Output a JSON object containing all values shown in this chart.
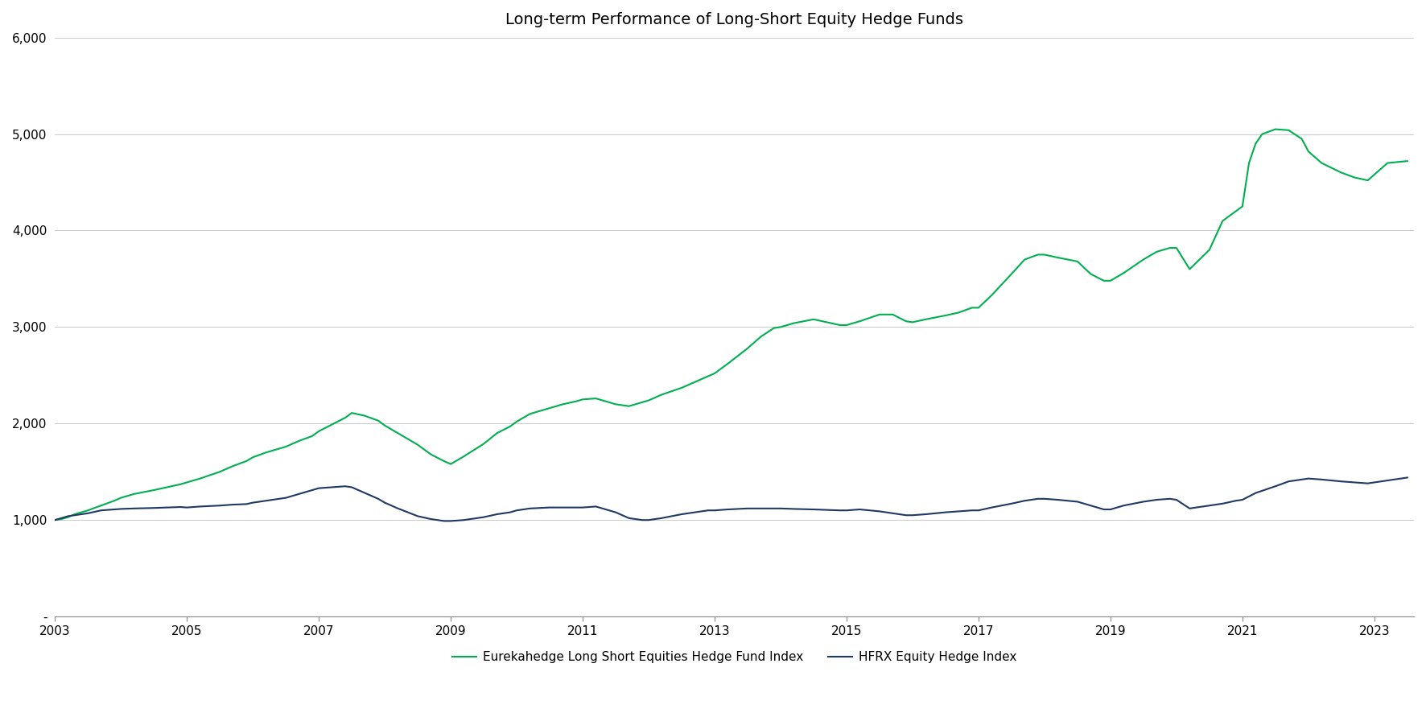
{
  "title": "Long-term Performance of Long-Short Equity Hedge Funds",
  "title_fontsize": 14,
  "background_color": "#ffffff",
  "green_label": "Eurekahedge Long Short Equities Hedge Fund Index",
  "navy_label": "HFRX Equity Hedge Index",
  "green_color": "#00b050",
  "navy_color": "#1f3864",
  "ylim": [
    0,
    6000
  ],
  "yticks": [
    0,
    1000,
    2000,
    3000,
    4000,
    5000,
    6000
  ],
  "ytick_labels": [
    "-",
    "1,000",
    "2,000",
    "3,000",
    "4,000",
    "5,000",
    "6,000"
  ],
  "xticks": [
    2003,
    2005,
    2007,
    2009,
    2011,
    2013,
    2015,
    2017,
    2019,
    2021,
    2023
  ],
  "green_x": [
    2003.0,
    2003.1,
    2003.2,
    2003.3,
    2003.5,
    2003.7,
    2003.9,
    2004.0,
    2004.2,
    2004.5,
    2004.7,
    2004.9,
    2005.0,
    2005.2,
    2005.5,
    2005.7,
    2005.9,
    2006.0,
    2006.2,
    2006.5,
    2006.7,
    2006.9,
    2007.0,
    2007.2,
    2007.4,
    2007.5,
    2007.7,
    2007.9,
    2008.0,
    2008.2,
    2008.5,
    2008.7,
    2008.9,
    2009.0,
    2009.2,
    2009.5,
    2009.7,
    2009.9,
    2010.0,
    2010.2,
    2010.5,
    2010.7,
    2010.9,
    2011.0,
    2011.2,
    2011.5,
    2011.7,
    2011.9,
    2012.0,
    2012.2,
    2012.5,
    2012.7,
    2012.9,
    2013.0,
    2013.2,
    2013.5,
    2013.7,
    2013.9,
    2014.0,
    2014.2,
    2014.5,
    2014.7,
    2014.9,
    2015.0,
    2015.2,
    2015.5,
    2015.7,
    2015.9,
    2016.0,
    2016.2,
    2016.5,
    2016.7,
    2016.9,
    2017.0,
    2017.2,
    2017.5,
    2017.7,
    2017.9,
    2018.0,
    2018.2,
    2018.5,
    2018.7,
    2018.9,
    2019.0,
    2019.2,
    2019.5,
    2019.7,
    2019.9,
    2020.0,
    2020.2,
    2020.5,
    2020.7,
    2020.9,
    2021.0,
    2021.1,
    2021.2,
    2021.3,
    2021.5,
    2021.7,
    2021.9,
    2022.0,
    2022.2,
    2022.5,
    2022.7,
    2022.9,
    2023.0,
    2023.2,
    2023.5
  ],
  "green_y": [
    1000,
    1010,
    1030,
    1060,
    1100,
    1150,
    1200,
    1230,
    1270,
    1310,
    1340,
    1370,
    1390,
    1430,
    1500,
    1560,
    1610,
    1650,
    1700,
    1760,
    1820,
    1870,
    1920,
    1990,
    2060,
    2110,
    2080,
    2030,
    1980,
    1900,
    1780,
    1680,
    1610,
    1580,
    1660,
    1790,
    1900,
    1970,
    2020,
    2100,
    2160,
    2200,
    2230,
    2250,
    2260,
    2200,
    2180,
    2220,
    2240,
    2300,
    2370,
    2430,
    2490,
    2520,
    2620,
    2780,
    2900,
    2990,
    3000,
    3040,
    3080,
    3050,
    3020,
    3020,
    3060,
    3130,
    3130,
    3060,
    3050,
    3080,
    3120,
    3150,
    3200,
    3200,
    3330,
    3550,
    3700,
    3750,
    3750,
    3720,
    3680,
    3550,
    3480,
    3480,
    3560,
    3700,
    3780,
    3820,
    3820,
    3600,
    3800,
    4100,
    4200,
    4250,
    4700,
    4900,
    5000,
    5050,
    5040,
    4950,
    4820,
    4700,
    4600,
    4550,
    4520,
    4580,
    4700,
    4720
  ],
  "navy_x": [
    2003.0,
    2003.2,
    2003.5,
    2003.7,
    2003.9,
    2004.0,
    2004.2,
    2004.5,
    2004.7,
    2004.9,
    2005.0,
    2005.2,
    2005.5,
    2005.7,
    2005.9,
    2006.0,
    2006.2,
    2006.5,
    2006.7,
    2006.9,
    2007.0,
    2007.2,
    2007.4,
    2007.5,
    2007.7,
    2007.9,
    2008.0,
    2008.2,
    2008.5,
    2008.7,
    2008.9,
    2009.0,
    2009.2,
    2009.5,
    2009.7,
    2009.9,
    2010.0,
    2010.2,
    2010.5,
    2010.7,
    2010.9,
    2011.0,
    2011.2,
    2011.5,
    2011.7,
    2011.9,
    2012.0,
    2012.2,
    2012.5,
    2012.7,
    2012.9,
    2013.0,
    2013.2,
    2013.5,
    2013.7,
    2013.9,
    2014.0,
    2014.2,
    2014.5,
    2014.7,
    2014.9,
    2015.0,
    2015.2,
    2015.5,
    2015.7,
    2015.9,
    2016.0,
    2016.2,
    2016.5,
    2016.7,
    2016.9,
    2017.0,
    2017.2,
    2017.5,
    2017.7,
    2017.9,
    2018.0,
    2018.2,
    2018.5,
    2018.7,
    2018.9,
    2019.0,
    2019.2,
    2019.5,
    2019.7,
    2019.9,
    2020.0,
    2020.2,
    2020.5,
    2020.7,
    2020.9,
    2021.0,
    2021.2,
    2021.5,
    2021.7,
    2021.9,
    2022.0,
    2022.2,
    2022.5,
    2022.7,
    2022.9,
    2023.0,
    2023.2,
    2023.5
  ],
  "navy_y": [
    1000,
    1040,
    1070,
    1100,
    1110,
    1115,
    1120,
    1125,
    1130,
    1135,
    1130,
    1140,
    1150,
    1160,
    1165,
    1180,
    1200,
    1230,
    1270,
    1310,
    1330,
    1340,
    1350,
    1340,
    1280,
    1220,
    1180,
    1120,
    1040,
    1010,
    990,
    990,
    1000,
    1030,
    1060,
    1080,
    1100,
    1120,
    1130,
    1130,
    1130,
    1130,
    1140,
    1080,
    1020,
    1000,
    1000,
    1020,
    1060,
    1080,
    1100,
    1100,
    1110,
    1120,
    1120,
    1120,
    1120,
    1115,
    1110,
    1105,
    1100,
    1100,
    1110,
    1090,
    1070,
    1050,
    1050,
    1060,
    1080,
    1090,
    1100,
    1100,
    1130,
    1170,
    1200,
    1220,
    1220,
    1210,
    1190,
    1150,
    1110,
    1110,
    1150,
    1190,
    1210,
    1220,
    1210,
    1120,
    1150,
    1170,
    1200,
    1210,
    1280,
    1350,
    1400,
    1420,
    1430,
    1420,
    1400,
    1390,
    1380,
    1390,
    1410,
    1440
  ],
  "linewidth": 1.5
}
